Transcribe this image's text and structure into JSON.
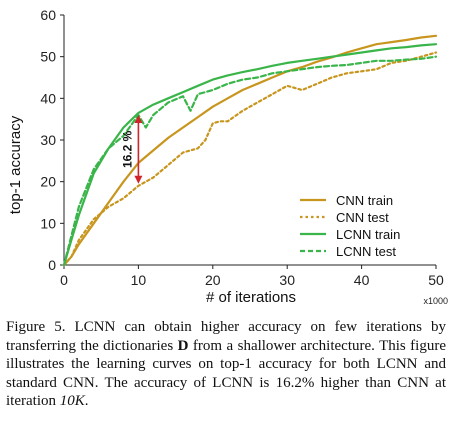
{
  "chart_data": {
    "type": "line",
    "xlabel": "# of iterations",
    "x_multiplier": "x1000",
    "ylabel": "top-1 accuracy",
    "xlim": [
      0,
      50
    ],
    "ylim": [
      0,
      60
    ],
    "xticks": [
      0,
      10,
      20,
      30,
      40,
      50
    ],
    "yticks": [
      0,
      10,
      20,
      30,
      40,
      50,
      60
    ],
    "grid": false,
    "legend_position": "bottom-right",
    "series": [
      {
        "name": "CNN train",
        "color": "#c8961e",
        "dash": "solid",
        "x": [
          0,
          1,
          2,
          4,
          6,
          8,
          10,
          12,
          14,
          16,
          18,
          20,
          22,
          24,
          26,
          28,
          30,
          32,
          34,
          36,
          38,
          40,
          42,
          44,
          46,
          48,
          50
        ],
        "y": [
          0,
          2,
          5,
          10,
          15,
          20,
          24.5,
          27.5,
          30.5,
          33,
          35.5,
          38,
          40,
          42,
          43.5,
          45,
          46.5,
          47.5,
          48.8,
          49.8,
          51,
          52,
          53,
          53.5,
          54,
          54.6,
          55
        ]
      },
      {
        "name": "CNN test",
        "color": "#c8961e",
        "dash": "dotted",
        "x": [
          0,
          1,
          2,
          4,
          6,
          8,
          10,
          12,
          14,
          16,
          18,
          19,
          20,
          21,
          22,
          24,
          26,
          28,
          30,
          32,
          34,
          36,
          38,
          40,
          42,
          44,
          46,
          48,
          50
        ],
        "y": [
          0,
          2,
          6,
          11,
          14,
          16,
          19,
          21,
          24,
          27,
          28,
          30,
          34,
          34.5,
          34.5,
          37,
          39,
          41,
          43,
          42,
          43.5,
          45,
          46,
          46.5,
          47,
          48.5,
          49,
          50,
          51
        ]
      },
      {
        "name": "LCNN train",
        "color": "#3ab54a",
        "dash": "solid",
        "x": [
          0,
          1,
          2,
          4,
          6,
          8,
          10,
          12,
          14,
          16,
          18,
          20,
          22,
          24,
          26,
          28,
          30,
          32,
          34,
          36,
          38,
          40,
          42,
          44,
          46,
          48,
          50
        ],
        "y": [
          0,
          6,
          12,
          22,
          28,
          33,
          36.5,
          38.5,
          40,
          41.5,
          43,
          44.5,
          45.5,
          46.3,
          47,
          47.8,
          48.5,
          49,
          49.5,
          50,
          50.5,
          51,
          51.5,
          52,
          52.3,
          52.7,
          53
        ]
      },
      {
        "name": "LCNN test",
        "color": "#3ab54a",
        "dash": "dashed",
        "x": [
          0,
          1,
          2,
          4,
          6,
          8,
          10,
          11,
          12,
          14,
          16,
          17,
          18,
          20,
          22,
          24,
          26,
          28,
          30,
          32,
          34,
          36,
          38,
          40,
          42,
          44,
          46,
          48,
          50
        ],
        "y": [
          0,
          7,
          14,
          23,
          28,
          31,
          36,
          33,
          36,
          39,
          40.5,
          37,
          41,
          42,
          43.5,
          44.5,
          45,
          46,
          46.5,
          47,
          47.5,
          47.8,
          48,
          48.5,
          49,
          49,
          49.3,
          49.5,
          50
        ]
      }
    ],
    "annotation": {
      "label": "16.2 %",
      "x": 10,
      "y_from": 19.5,
      "y_to": 36,
      "color": "#d0262b"
    }
  },
  "caption": {
    "prefix": "Figure 5. LCNN can obtain higher accuracy on few iterations by transferring the dictionaries ",
    "dict_symbol": "D",
    "middle": " from a shallower architecture. This figure illustrates the learning curves on top-1 accuracy for both LCNN and standard CNN. The accuracy of LCNN is ",
    "percent": "16.2%",
    "pre_iter": " higher than CNN at iteration ",
    "iter": "10K",
    "end": "."
  }
}
